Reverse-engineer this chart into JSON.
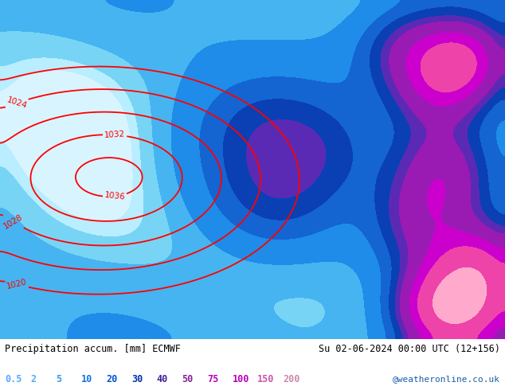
{
  "title_left": "Precipitation accum. [mm] ECMWF",
  "title_right": "Su 02-06-2024 00:00 UTC (12+156)",
  "credit": "@weatheronline.co.uk",
  "legend_values": [
    "0.5",
    "2",
    "5",
    "10",
    "20",
    "30",
    "40",
    "50",
    "75",
    "100",
    "150",
    "200"
  ],
  "legend_text_colors": [
    "#55aaff",
    "#55aaff",
    "#3399ee",
    "#1177dd",
    "#0055cc",
    "#0033aa",
    "#442299",
    "#882299",
    "#bb00bb",
    "#bb00bb",
    "#cc55aa",
    "#cc88aa"
  ],
  "precip_levels": [
    0,
    0.5,
    2,
    5,
    10,
    20,
    30,
    40,
    50,
    75,
    100,
    150,
    200,
    300
  ],
  "precip_colors": [
    "#d8f4ff",
    "#b8eeff",
    "#78d4f5",
    "#46b4f0",
    "#1e8ce8",
    "#1464d2",
    "#0a40b4",
    "#5a2ab4",
    "#9a1ab4",
    "#cc00cc",
    "#ee44aa",
    "#ffaacc",
    "#ffccee"
  ],
  "isobar_levels": [
    1020,
    1024,
    1028,
    1032,
    1036,
    1040
  ],
  "isobar_color": "red",
  "isobar_linewidth": 1.3,
  "fig_width": 6.34,
  "fig_height": 4.9,
  "dpi": 100
}
